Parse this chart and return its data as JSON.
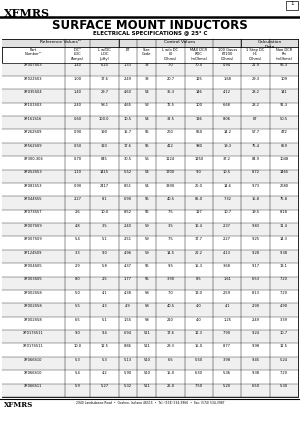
{
  "title": "SURFACE MOUNT INDUCTORS",
  "subtitle": "ELECTRICAL SPECIFICATIONS @ 25° C",
  "brand": "XFMRS",
  "page": "1",
  "group_labels": [
    "Reference Values¹ᶜ",
    "Control Values",
    "Calculation\nData"
  ],
  "group_spans": [
    3,
    5,
    2
  ],
  "col_labels": [
    "Part\nNumber¹ᶜ",
    "IDCᵇ\nI-DC\n(Amps)",
    "L w/DC\nL-DC\n(μHy)",
    "ET",
    "Size\nCode",
    "L w/o DC\nL0\n(Ohms)",
    "MAX DCR\nRDC\n(mOhms)",
    "100 Gauss\nET100\n(Ohms)",
    "1 Step DC\nH1\n(Ohms)",
    "Non DCR\nRn\n(mOhms)"
  ],
  "rows": [
    [
      "XF007S03",
      "1.40",
      "6.20",
      "1.33",
      "33",
      "7.0",
      "70.0",
      "0.94",
      "21.9",
      "55.3"
    ],
    [
      "XF022S03",
      "1.00",
      "17.6",
      "2.49",
      "33",
      "20.7",
      "125",
      "1.68",
      "29.3",
      "109"
    ],
    [
      "XF035S04",
      "1.40",
      "29.7",
      "4.60",
      "54",
      "35.3",
      "146",
      "4.12",
      "23.2",
      "141"
    ],
    [
      "XF101S03",
      "2.40",
      "58.1",
      "4.65",
      "53",
      "76.5",
      "100",
      "6.68",
      "23.2",
      "91.3"
    ],
    [
      "XF161S16",
      "0.60",
      "100.0",
      "10.5",
      "54",
      "32.5",
      "136",
      "8.06",
      "67",
      "50.5"
    ],
    [
      "XF262S09",
      "0.90",
      "190",
      "15.7",
      "55",
      "260",
      "550",
      "14.2",
      "57.7",
      "472"
    ],
    [
      "XF562S09",
      "0.50",
      "310",
      "17.6",
      "55",
      "412",
      "980",
      "19.3",
      "75.4",
      "859"
    ],
    [
      "XF300-306",
      "0.70",
      "845",
      "30.5",
      "56",
      "1124",
      "1250",
      "37.2",
      "84.9",
      "1048"
    ],
    [
      "XF052S53",
      "1.10",
      "1415",
      "5.52",
      "54",
      "1700",
      "9.0",
      "10.5",
      "8.72",
      "1465"
    ],
    [
      "XF081S53",
      "0.90",
      "2417",
      "8.51",
      "54",
      "3390",
      "26.0",
      "14.6",
      "9.73",
      "2680"
    ],
    [
      "XF044S55",
      "2.27",
      "8.1",
      "6.90",
      "55",
      "40.5",
      "85.0",
      "7.32",
      "15.8",
      "75.8"
    ],
    [
      "XF073S57",
      "2.6",
      "10.0",
      "8.52",
      "55",
      "7.5",
      "127",
      "10.7",
      "19.5",
      "8.18"
    ],
    [
      "XF007S09",
      "4.8",
      "3.5",
      "2.40",
      "59",
      "3.5",
      "16.4",
      "2.37",
      "9.83",
      "11.4"
    ],
    [
      "XF007S09",
      "5.4",
      "5.1",
      "2.51",
      "59",
      "7.5",
      "17.7",
      "2.27",
      "9.25",
      "14.3"
    ],
    [
      "XF124S09",
      "3.3",
      "9.0",
      "4.96",
      "59",
      "14.5",
      "22.2",
      "4.13",
      "9.28",
      "9.38"
    ],
    [
      "XF004S05",
      "2.9",
      "5.8",
      "4.37",
      "55",
      "9.5",
      "15.3",
      "3.68",
      "9.17",
      "13.1"
    ],
    [
      "XF003S05",
      "8.0",
      "2.5",
      "1.77",
      "55",
      "3.90",
      "8.5",
      "1.61",
      "6.53",
      "7.20"
    ],
    [
      "XF002S58",
      "5.0",
      "4.1",
      "4.38",
      "58",
      "7.0",
      "13.0",
      "2.59",
      "8.13",
      "7.20"
    ],
    [
      "XF002S58",
      "5.5",
      "4.3",
      "4.9",
      "58",
      "40.5",
      "4.0",
      "4.1",
      "2.90",
      "4.90"
    ],
    [
      "XF002S58",
      "6.5",
      "5.1",
      "1.55",
      "58",
      "210",
      "4.0",
      "1.25",
      "2.49",
      "3.39"
    ],
    [
      "XF017S511",
      "9.0",
      "9.4",
      "6.94",
      "511",
      "17.6",
      "12.3",
      "7.90",
      "9.24",
      "10.7"
    ],
    [
      "XF017S511",
      "10.0",
      "12.5",
      "8.86",
      "511",
      "28.3",
      "15.0",
      "8.77",
      "9.98",
      "12.5"
    ],
    [
      "XF066S10",
      "5.3",
      "5.3",
      "5.13",
      "510",
      "6.5",
      "5.50",
      "3.98",
      "9.45",
      "5.24"
    ],
    [
      "XF066S10",
      "5.4",
      "4.2",
      "5.90",
      "510",
      "15.0",
      "6.30",
      "5.36",
      "9.38",
      "7.20"
    ],
    [
      "XF066S11",
      "5.9",
      "5.27",
      "5.32",
      "511",
      "25.0",
      "7.50",
      "5.20",
      "6.50",
      "5.30"
    ]
  ],
  "footer_brand": "XFMRS",
  "footer_text": "2940 Landsdowne Road  •  Goshen, Indiana 46515  •  Tel: (574) 534-3966  •  Fax: (574) 534-3987",
  "col_widths_rel": [
    20,
    8,
    9,
    6,
    6,
    9,
    9,
    9,
    9,
    9
  ],
  "bg_color": "#ffffff"
}
